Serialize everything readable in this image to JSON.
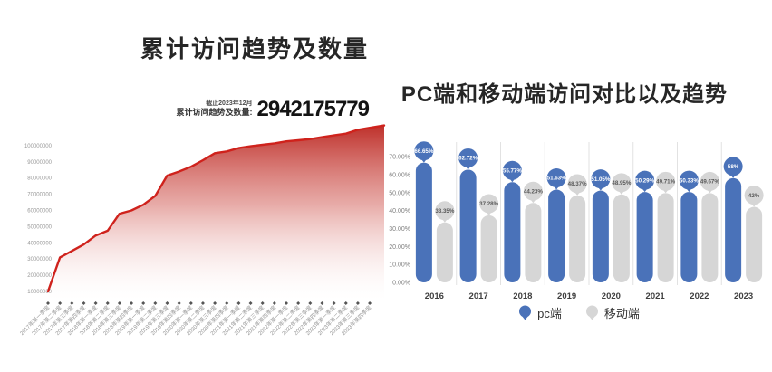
{
  "left_chart": {
    "title": "累计访问趋势及数量",
    "annotation": {
      "as_of": "截止2023年12月",
      "label": "累计访问趋势及数量:",
      "value": "2942175779"
    }
  },
  "right_chart": {
    "title": "PC端和移动端访问对比以及趋势"
  },
  "chart_data": [
    {
      "type": "area",
      "title": "累计访问趋势及数量",
      "x": [
        "2017年第一季度",
        "2017年第二季度",
        "2017年第三季度",
        "2017年第四季度",
        "2018年第一季度",
        "2018年第二季度",
        "2018年第三季度",
        "2018年第四季度",
        "2019年第一季度",
        "2019年第二季度",
        "2019年第三季度",
        "2019年第四季度",
        "2020年第一季度",
        "2020年第二季度",
        "2020年第三季度",
        "2020年第四季度",
        "2021年第一季度",
        "2021年第二季度",
        "2021年第三季度",
        "2021年第四季度",
        "2022年第一季度",
        "2022年第二季度",
        "2022年第三季度",
        "2022年第四季度",
        "2023年第一季度",
        "2023年第二季度",
        "2023年第三季度",
        "2023年第四季度"
      ],
      "values": [
        10000000,
        31000000,
        35000000,
        39000000,
        44500000,
        47500000,
        58000000,
        60000000,
        63500000,
        69000000,
        81500000,
        84000000,
        87000000,
        91000000,
        95300000,
        96400000,
        98500000,
        99600000,
        100500000,
        101400000,
        102600000,
        103300000,
        104000000,
        105200000,
        106300000,
        107400000,
        109800000,
        111000000
      ],
      "y_ticks": [
        "100000000",
        "90000000",
        "80000000",
        "70000000",
        "60000000",
        "50000000",
        "40000000",
        "30000000",
        "20000000",
        "10000000"
      ],
      "ylim": [
        0,
        115000000
      ],
      "cumulative_total": 2942175779,
      "as_of": "截止2023年12月",
      "line_color": "#cf221c",
      "fill_gradient_top": "#bb2620",
      "fill_gradient_bottom": "#ffffff",
      "axis_text_color": "#979797",
      "tick_mark_color": "#555555",
      "grid": false
    },
    {
      "type": "bar",
      "subtype": "lollipop",
      "title": "PC端和移动端访问对比以及趋势",
      "categories": [
        "2016",
        "2017",
        "2018",
        "2019",
        "2020",
        "2021",
        "2022",
        "2023"
      ],
      "series": [
        {
          "name": "pc端",
          "color": "#4a72b9",
          "values": [
            66.65,
            62.72,
            55.77,
            51.63,
            51.05,
            50.29,
            50.33,
            58
          ],
          "labels": [
            "66.65%",
            "62.72%",
            "55.77%",
            "51.63%",
            "51.05%",
            "50.29%",
            "50.33%",
            "58%"
          ],
          "label_color": "#ffffff"
        },
        {
          "name": "移动端",
          "color": "#d6d6d6",
          "values": [
            33.35,
            37.28,
            44.23,
            48.37,
            48.95,
            49.71,
            49.67,
            42
          ],
          "labels": [
            "33.35%",
            "37.28%",
            "44.23%",
            "48.37%",
            "48.95%",
            "49.71%",
            "49.67%",
            "42%"
          ],
          "label_color": "#595959"
        }
      ],
      "y_ticks": [
        "70.00%",
        "60.00%",
        "50.00%",
        "40.00%",
        "30.00%",
        "20.00%",
        "10.00%",
        "0.00%"
      ],
      "ylim": [
        0,
        70
      ],
      "axis_text_color": "#7d7d7d",
      "category_text_color": "#3f3f3f",
      "separator_color": "#e2e2e2",
      "legend_position": "bottom",
      "grid": false
    }
  ]
}
